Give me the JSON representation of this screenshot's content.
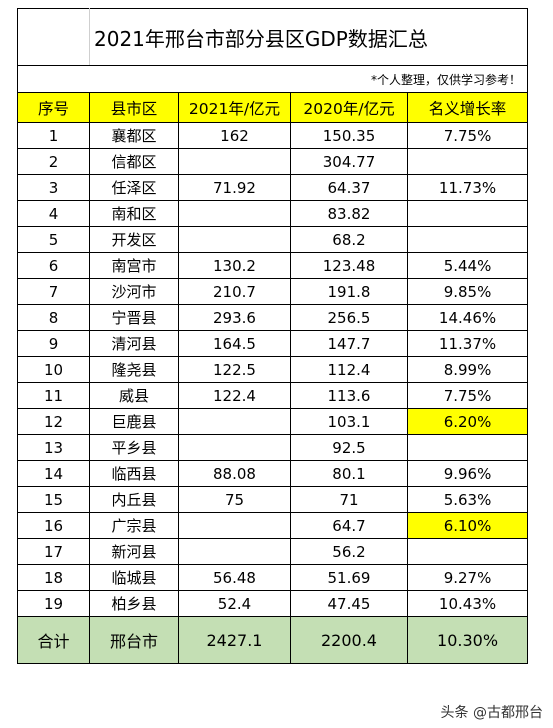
{
  "title": "2021年邢台市部分县区GDP数据汇总",
  "note": "*个人整理，仅供学习参考！",
  "headers": [
    "序号",
    "县市区",
    "2021年/亿元",
    "2020年/亿元",
    "名义增长率"
  ],
  "rows": [
    {
      "no": "1",
      "name": "襄都区",
      "y2021": "162",
      "y2020": "150.35",
      "growth": "7.75%",
      "highlight": false
    },
    {
      "no": "2",
      "name": "信都区",
      "y2021": "",
      "y2020": "304.77",
      "growth": "",
      "highlight": false
    },
    {
      "no": "3",
      "name": "任泽区",
      "y2021": "71.92",
      "y2020": "64.37",
      "growth": "11.73%",
      "highlight": false
    },
    {
      "no": "4",
      "name": "南和区",
      "y2021": "",
      "y2020": "83.82",
      "growth": "",
      "highlight": false
    },
    {
      "no": "5",
      "name": "开发区",
      "y2021": "",
      "y2020": "68.2",
      "growth": "",
      "highlight": false
    },
    {
      "no": "6",
      "name": "南宫市",
      "y2021": "130.2",
      "y2020": "123.48",
      "growth": "5.44%",
      "highlight": false
    },
    {
      "no": "7",
      "name": "沙河市",
      "y2021": "210.7",
      "y2020": "191.8",
      "growth": "9.85%",
      "highlight": false
    },
    {
      "no": "8",
      "name": "宁晋县",
      "y2021": "293.6",
      "y2020": "256.5",
      "growth": "14.46%",
      "highlight": false
    },
    {
      "no": "9",
      "name": "清河县",
      "y2021": "164.5",
      "y2020": "147.7",
      "growth": "11.37%",
      "highlight": false
    },
    {
      "no": "10",
      "name": "隆尧县",
      "y2021": "122.5",
      "y2020": "112.4",
      "growth": "8.99%",
      "highlight": false
    },
    {
      "no": "11",
      "name": "威县",
      "y2021": "122.4",
      "y2020": "113.6",
      "growth": "7.75%",
      "highlight": false
    },
    {
      "no": "12",
      "name": "巨鹿县",
      "y2021": "",
      "y2020": "103.1",
      "growth": "6.20%",
      "highlight": true
    },
    {
      "no": "13",
      "name": "平乡县",
      "y2021": "",
      "y2020": "92.5",
      "growth": "",
      "highlight": false
    },
    {
      "no": "14",
      "name": "临西县",
      "y2021": "88.08",
      "y2020": "80.1",
      "growth": "9.96%",
      "highlight": false
    },
    {
      "no": "15",
      "name": "内丘县",
      "y2021": "75",
      "y2020": "71",
      "growth": "5.63%",
      "highlight": false
    },
    {
      "no": "16",
      "name": "广宗县",
      "y2021": "",
      "y2020": "64.7",
      "growth": "6.10%",
      "highlight": true
    },
    {
      "no": "17",
      "name": "新河县",
      "y2021": "",
      "y2020": "56.2",
      "growth": "",
      "highlight": false
    },
    {
      "no": "18",
      "name": "临城县",
      "y2021": "56.48",
      "y2020": "51.69",
      "growth": "9.27%",
      "highlight": false
    },
    {
      "no": "19",
      "name": "柏乡县",
      "y2021": "52.4",
      "y2020": "47.45",
      "growth": "10.43%",
      "highlight": false
    }
  ],
  "total": {
    "no": "合计",
    "name": "邢台市",
    "y2021": "2427.1",
    "y2020": "2200.4",
    "growth": "10.30%"
  },
  "watermark": "头条 @古都邢台",
  "colors": {
    "header_bg": "#ffff00",
    "highlight_bg": "#ffff00",
    "total_bg": "#c4dfb4"
  }
}
